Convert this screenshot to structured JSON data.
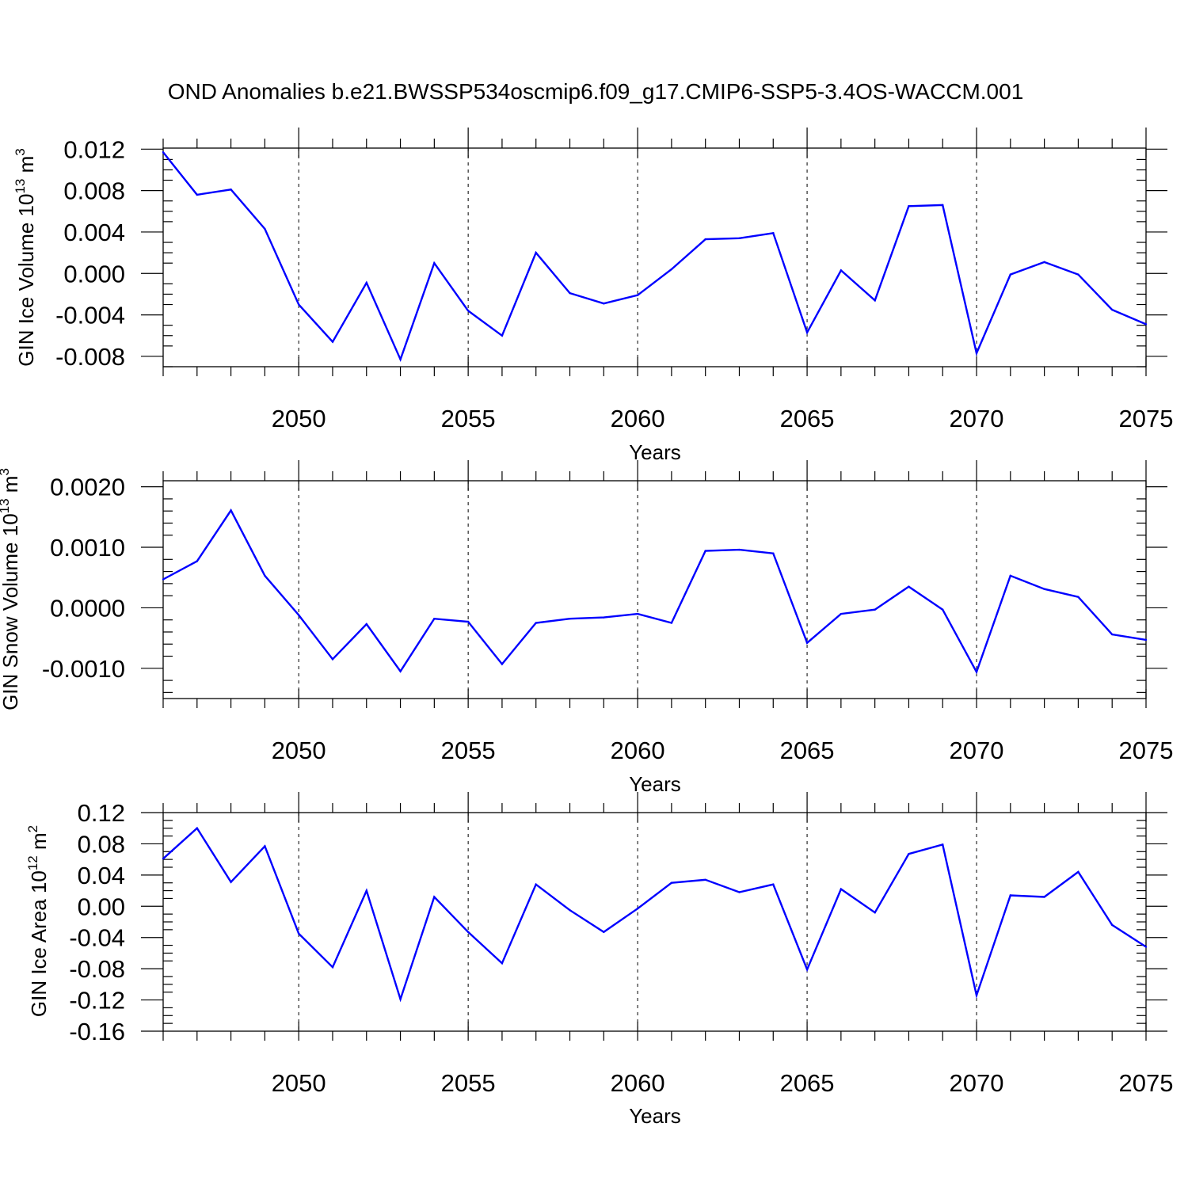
{
  "title": "OND Anomalies b.e21.BWSSP534oscmip6.f09_g17.CMIP6-SSP5-3.4OS-WACCM.001",
  "colors": {
    "line": "#0000ff",
    "axis": "#000000"
  },
  "chart_data": [
    {
      "type": "line",
      "xlabel": "Years",
      "ylabel": "GIN Ice Volume 10",
      "ylabel_sup": "13",
      "ylabel_unit": " m",
      "ylabel_unit_sup": "3",
      "xlim": [
        2046,
        2075
      ],
      "ylim": [
        -0.009,
        0.0121
      ],
      "yticks": [
        0.012,
        0.008,
        0.004,
        0.0,
        -0.004,
        -0.008
      ],
      "ytick_labels": [
        "0.012",
        "0.008",
        "0.004",
        "0.000",
        "-0.004",
        "-0.008"
      ],
      "yminor_step": 0.001,
      "xticks": [
        2050,
        2055,
        2060,
        2065,
        2070,
        2075
      ],
      "xtick_labels": [
        "2050",
        "2055",
        "2060",
        "2065",
        "2070",
        "2075"
      ],
      "grid_x": true,
      "x": [
        2046,
        2047,
        2048,
        2049,
        2050,
        2051,
        2052,
        2053,
        2054,
        2055,
        2056,
        2057,
        2058,
        2059,
        2060,
        2061,
        2062,
        2063,
        2064,
        2065,
        2066,
        2067,
        2068,
        2069,
        2070,
        2071,
        2072,
        2073,
        2074,
        2075
      ],
      "values": [
        0.0117,
        0.0076,
        0.0081,
        0.0043,
        -0.003,
        -0.0066,
        -0.0009,
        -0.0083,
        0.001,
        -0.0036,
        -0.006,
        0.002,
        -0.0019,
        -0.0029,
        -0.0021,
        0.0004,
        0.0033,
        0.0034,
        0.0039,
        -0.0057,
        0.0003,
        -0.0026,
        0.0065,
        0.0066,
        -0.0077,
        -0.0001,
        0.0011,
        -0.0001,
        -0.0035,
        -0.0049
      ]
    },
    {
      "type": "line",
      "xlabel": "Years",
      "ylabel": "GIN Snow Volume 10",
      "ylabel_sup": "13",
      "ylabel_unit": " m",
      "ylabel_unit_sup": "3",
      "xlim": [
        2046,
        2075
      ],
      "ylim": [
        -0.0015,
        0.0021
      ],
      "yticks": [
        0.002,
        0.001,
        0.0,
        -0.001
      ],
      "ytick_labels": [
        "0.0020",
        "0.0010",
        "0.0000",
        "-0.0010"
      ],
      "yminor_step": 0.0002,
      "xticks": [
        2050,
        2055,
        2060,
        2065,
        2070,
        2075
      ],
      "xtick_labels": [
        "2050",
        "2055",
        "2060",
        "2065",
        "2070",
        "2075"
      ],
      "grid_x": true,
      "x": [
        2046,
        2047,
        2048,
        2049,
        2050,
        2051,
        2052,
        2053,
        2054,
        2055,
        2056,
        2057,
        2058,
        2059,
        2060,
        2061,
        2062,
        2063,
        2064,
        2065,
        2066,
        2067,
        2068,
        2069,
        2070,
        2071,
        2072,
        2073,
        2074,
        2075
      ],
      "values": [
        0.00047,
        0.00077,
        0.00161,
        0.00053,
        -0.00012,
        -0.00085,
        -0.00027,
        -0.00105,
        -0.00018,
        -0.00023,
        -0.00093,
        -0.00025,
        -0.00018,
        -0.00016,
        -0.0001,
        -0.00025,
        0.00094,
        0.00096,
        0.0009,
        -0.00058,
        -0.0001,
        -3e-05,
        0.00035,
        -3e-05,
        -0.00106,
        0.00053,
        0.00031,
        0.00018,
        -0.00044,
        -0.00053
      ]
    },
    {
      "type": "line",
      "xlabel": "Years",
      "ylabel": "GIN Ice Area 10",
      "ylabel_sup": "12",
      "ylabel_unit": " m",
      "ylabel_unit_sup": "2",
      "xlim": [
        2046,
        2075
      ],
      "ylim": [
        -0.16,
        0.12
      ],
      "yticks": [
        0.12,
        0.08,
        0.04,
        0.0,
        -0.04,
        -0.08,
        -0.12,
        -0.16
      ],
      "ytick_labels": [
        "0.12",
        "0.08",
        "0.04",
        "0.00",
        "-0.04",
        "-0.08",
        "-0.12",
        "-0.16"
      ],
      "yminor_step": 0.01,
      "xticks": [
        2050,
        2055,
        2060,
        2065,
        2070,
        2075
      ],
      "xtick_labels": [
        "2050",
        "2055",
        "2060",
        "2065",
        "2070",
        "2075"
      ],
      "grid_x": true,
      "x": [
        2046,
        2047,
        2048,
        2049,
        2050,
        2051,
        2052,
        2053,
        2054,
        2055,
        2056,
        2057,
        2058,
        2059,
        2060,
        2061,
        2062,
        2063,
        2064,
        2065,
        2066,
        2067,
        2068,
        2069,
        2070,
        2071,
        2072,
        2073,
        2074,
        2075
      ],
      "values": [
        0.061,
        0.1,
        0.031,
        0.077,
        -0.035,
        -0.078,
        0.02,
        -0.119,
        0.012,
        -0.033,
        -0.073,
        0.028,
        -0.005,
        -0.033,
        -0.003,
        0.03,
        0.034,
        0.018,
        0.028,
        -0.081,
        0.022,
        -0.008,
        0.067,
        0.079,
        -0.114,
        0.014,
        0.012,
        0.044,
        -0.024,
        -0.052
      ]
    }
  ]
}
